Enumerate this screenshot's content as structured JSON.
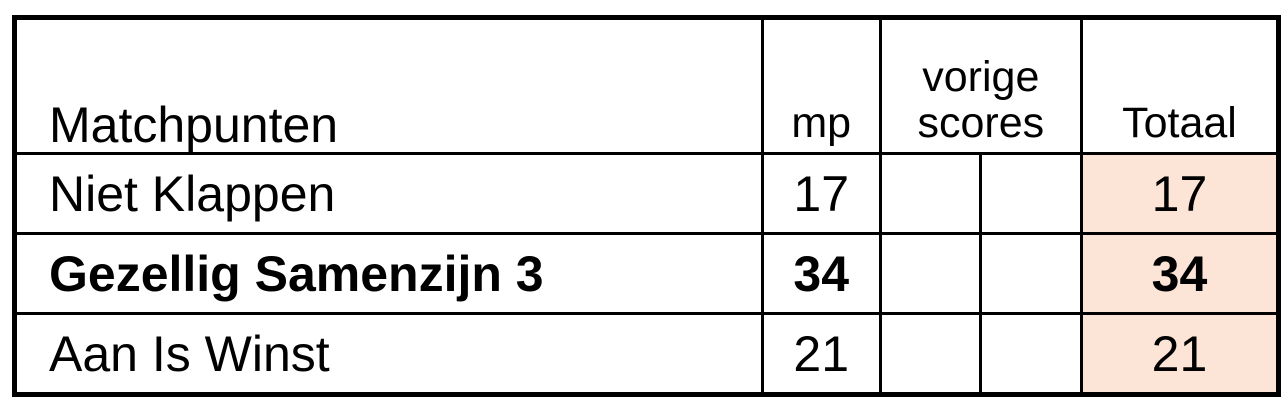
{
  "header": {
    "title": "Matchpunten",
    "mp": "mp",
    "previous": "vorige scores",
    "total": "Totaal"
  },
  "colors": {
    "total_fill": "#fce4d6"
  },
  "rows": [
    {
      "team": "Niet Klappen",
      "mp": "17",
      "total": "17",
      "bold": false
    },
    {
      "team": "Gezellig Samenzijn 3",
      "mp": "34",
      "total": "34",
      "bold": true
    },
    {
      "team": "Aan Is Winst",
      "mp": "21",
      "total": "21",
      "bold": false
    }
  ]
}
